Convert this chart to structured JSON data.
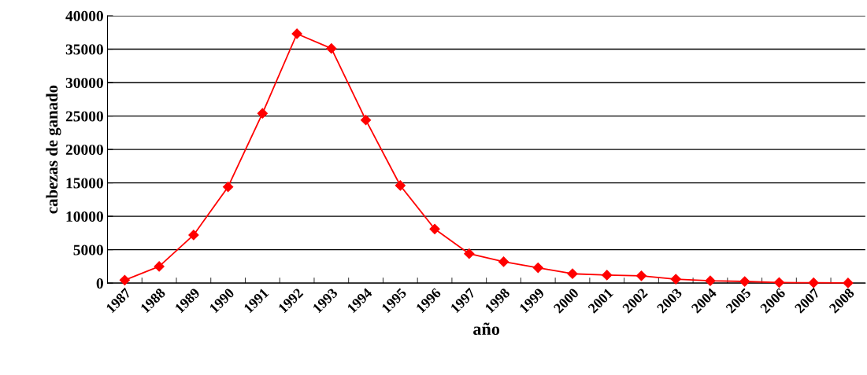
{
  "chart_data": {
    "type": "line",
    "xlabel": "año",
    "ylabel": "cabezas de ganado",
    "categories": [
      "1987",
      "1988",
      "1989",
      "1990",
      "1991",
      "1992",
      "1993",
      "1994",
      "1995",
      "1996",
      "1997",
      "1998",
      "1999",
      "2000",
      "2001",
      "2002",
      "2003",
      "2004",
      "2005",
      "2006",
      "2007",
      "2008"
    ],
    "series": [
      {
        "color": "#ff0000",
        "values": [
          450,
          2500,
          7200,
          14400,
          25400,
          37300,
          35100,
          24400,
          14600,
          8100,
          4400,
          3200,
          2300,
          1400,
          1200,
          1100,
          600,
          350,
          250,
          100,
          50,
          30
        ]
      }
    ],
    "ylim": [
      0,
      40000
    ],
    "yticks": [
      0,
      5000,
      10000,
      15000,
      20000,
      25000,
      30000,
      35000,
      40000
    ],
    "grid": "y",
    "marker": "diamond",
    "line_style": "solid",
    "legend": false
  }
}
